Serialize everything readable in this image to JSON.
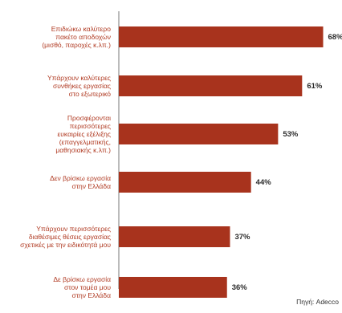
{
  "chart_data": {
    "type": "bar",
    "orientation": "horizontal",
    "categories": [
      [
        "Επιδιώκω καλύτερο",
        "πακέτο αποδοχών",
        "(μισθό, παροχές κ.λπ.)"
      ],
      [
        "Υπάρχουν καλύτερες",
        "συνθήκες εργασίας",
        "στο εξωτερικό"
      ],
      [
        "Προσφέρονται",
        "περισσότερες",
        "ευκαιρίες εξέλιξης",
        "(επαγγελματικής,",
        "μαθησιακής κ.λπ.)"
      ],
      [
        "Δεν βρίσκω εργασία",
        "στην Ελλάδα"
      ],
      [
        "Υπάρχουν περισσότερες",
        "διαθέσιμες θέσεις εργασίας",
        "σχετικές με την ειδικότητά μου"
      ],
      [
        "Δε βρίσκω εργασία",
        "στον τομέα μου",
        "στην Ελλάδα"
      ]
    ],
    "values": [
      68,
      61,
      53,
      44,
      37,
      36
    ],
    "value_labels": [
      "68%",
      "61%",
      "53%",
      "44%",
      "37%",
      "36%"
    ],
    "xlim": [
      0,
      70
    ],
    "bar_color": "#a8331d",
    "source": "Πηγή: Adecco"
  }
}
